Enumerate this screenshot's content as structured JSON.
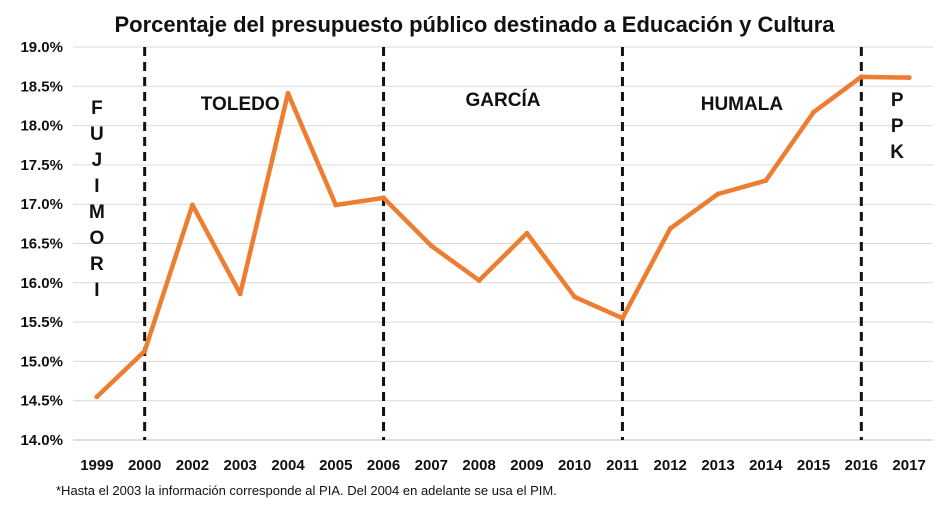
{
  "chart_data": {
    "type": "line",
    "title": "Porcentaje del presupuesto público destinado a Educación y Cultura",
    "xlabel": "",
    "ylabel": "",
    "categories": [
      "1999",
      "2000",
      "2002",
      "2003",
      "2004",
      "2005",
      "2006",
      "2007",
      "2008",
      "2009",
      "2010",
      "2011",
      "2012",
      "2013",
      "2014",
      "2015",
      "2016",
      "2017"
    ],
    "series": [
      {
        "values": [
          14.55,
          15.13,
          16.99,
          15.86,
          18.41,
          16.99,
          17.08,
          16.47,
          16.03,
          16.63,
          15.82,
          15.55,
          16.69,
          17.13,
          17.3,
          18.17,
          18.62,
          18.61
        ]
      }
    ],
    "ylim": [
      14.0,
      19.0
    ],
    "yticks": [
      "14.0%",
      "14.5%",
      "15.0%",
      "15.5%",
      "16.0%",
      "16.5%",
      "17.0%",
      "17.5%",
      "18.0%",
      "18.5%",
      "19.0%"
    ],
    "grid": true,
    "line_color": "#ED7D31",
    "period_dividers": [
      "2000",
      "2006",
      "2011",
      "2016"
    ],
    "periods": [
      {
        "label": "FUJIMORI",
        "vertical": true,
        "center": 0.0,
        "y": 18.15
      },
      {
        "label": "TOLEDO",
        "vertical": false,
        "center": 3.0,
        "y": 18.2
      },
      {
        "label": "GARCÍA",
        "vertical": false,
        "center": 8.5,
        "y": 18.25
      },
      {
        "label": "HUMALA",
        "vertical": false,
        "center": 13.5,
        "y": 18.2
      },
      {
        "label": "PPK",
        "vertical": true,
        "center": 16.75,
        "y": 18.25
      }
    ]
  },
  "footnote": "*Hasta el 2003 la información corresponde al PIA. Del 2004 en adelante se usa el PIM."
}
